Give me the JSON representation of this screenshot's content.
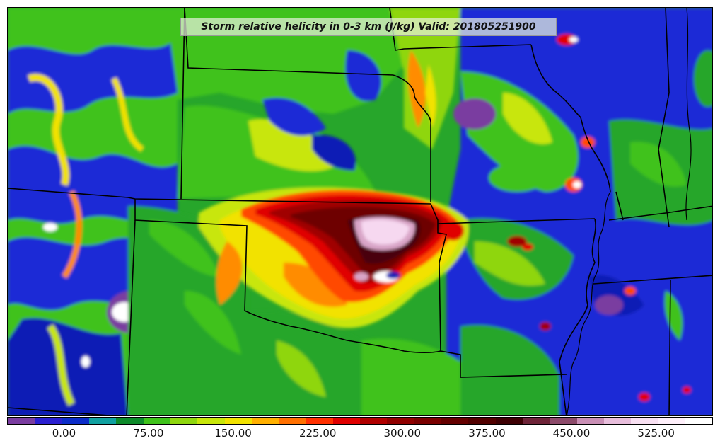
{
  "title": "Storm relative helicity in 0-3 km (J/kg) Valid: 201805251900",
  "map": {
    "field_colors": {
      "background": "#27a62b",
      "dark_green": "#0d8a2a",
      "green": "#3fc21b",
      "light_green": "#8fd60e",
      "yellow_green": "#c8e60a",
      "yellow": "#f2e200",
      "orange": "#ff8c00",
      "orange_red": "#ff4a00",
      "red": "#e00000",
      "dark_red": "#a00000",
      "maroon": "#6e0000",
      "very_dark": "#4a0008",
      "mauve": "#8c4a6a",
      "pink": "#d9a5c8",
      "light_pink": "#f6d8f0",
      "white": "#ffffff",
      "blue": "#1a2cd6",
      "dark_blue": "#0b1fb5",
      "purple": "#7a3ca0"
    }
  },
  "colorbar": {
    "colors": [
      "#7a3ca0",
      "#2a1fd0",
      "#0b2cc8",
      "#10a0a0",
      "#0d8a2a",
      "#3fc21b",
      "#8fd60e",
      "#c8e60a",
      "#f2e200",
      "#ffb000",
      "#ff7000",
      "#ff3000",
      "#e00000",
      "#b00000",
      "#900000",
      "#7a0000",
      "#650000",
      "#520000",
      "#3e0004",
      "#6e2438",
      "#8c4a6a",
      "#c98fb5",
      "#e8bedc",
      "#f8e0f2",
      "#fff0fb",
      "#ffffff"
    ],
    "ticks": [
      {
        "label": "0.00",
        "frac": 0.0806
      },
      {
        "label": "75.00",
        "frac": 0.2003
      },
      {
        "label": "150.00",
        "frac": 0.3202
      },
      {
        "label": "225.00",
        "frac": 0.4401
      },
      {
        "label": "300.00",
        "frac": 0.5599
      },
      {
        "label": "375.00",
        "frac": 0.6798
      },
      {
        "label": "450.00",
        "frac": 0.7996
      },
      {
        "label": "525.00",
        "frac": 0.9195
      }
    ]
  }
}
